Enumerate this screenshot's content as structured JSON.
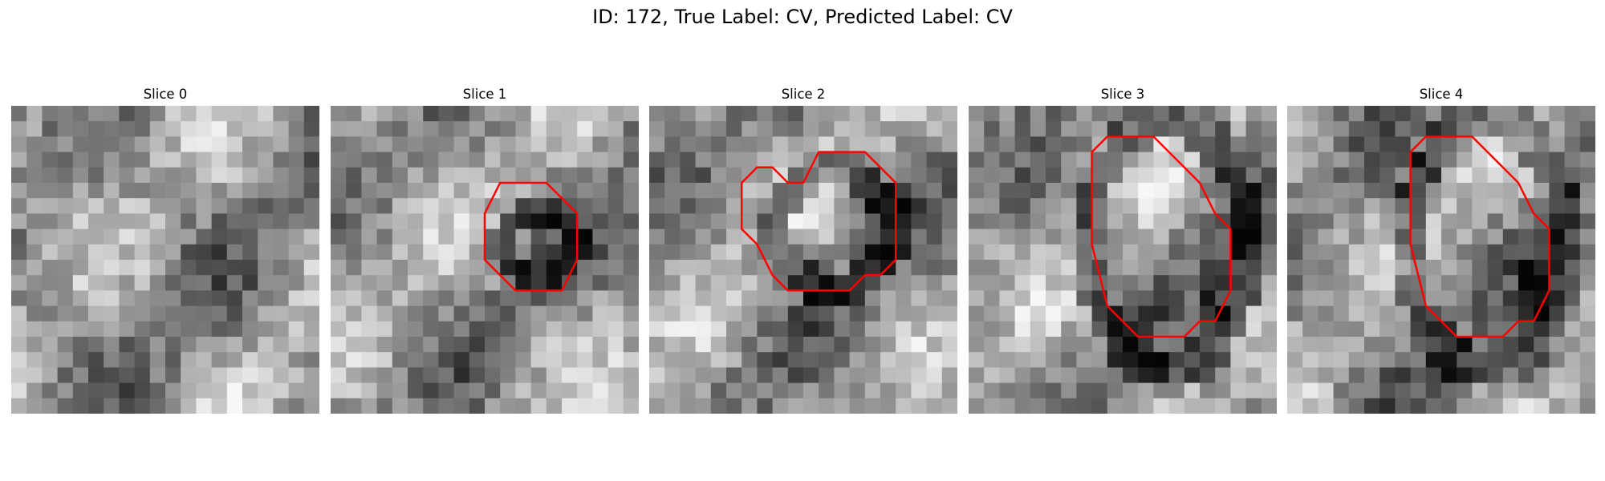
{
  "figure": {
    "title": "ID: 172, True Label: CV, Predicted Label: CV"
  },
  "panels": [
    {
      "title": "Slice 0",
      "contour": []
    },
    {
      "title": "Slice 1",
      "contour": [
        [
          11,
          5
        ],
        [
          14,
          5
        ],
        [
          16,
          7
        ],
        [
          16,
          10
        ],
        [
          15,
          12
        ],
        [
          12,
          12
        ],
        [
          11,
          11
        ],
        [
          10,
          10
        ],
        [
          10,
          7
        ]
      ]
    },
    {
      "title": "Slice 2",
      "contour": [
        [
          10,
          5
        ],
        [
          11,
          3
        ],
        [
          14,
          3
        ],
        [
          16,
          5
        ],
        [
          16,
          10
        ],
        [
          15,
          11
        ],
        [
          14,
          11
        ],
        [
          13,
          12
        ],
        [
          9,
          12
        ],
        [
          8,
          11
        ],
        [
          7,
          9
        ],
        [
          6,
          8
        ],
        [
          6,
          5
        ],
        [
          7,
          4
        ],
        [
          8,
          4
        ],
        [
          9,
          5
        ]
      ]
    },
    {
      "title": "Slice 3",
      "contour": [
        [
          11,
          2
        ],
        [
          12,
          2
        ],
        [
          13,
          3
        ],
        [
          14,
          4
        ],
        [
          15,
          5
        ],
        [
          16,
          7
        ],
        [
          17,
          8
        ],
        [
          17,
          12
        ],
        [
          16,
          14
        ],
        [
          15,
          14
        ],
        [
          14,
          15
        ],
        [
          11,
          15
        ],
        [
          10,
          14
        ],
        [
          9,
          13
        ],
        [
          8,
          9
        ],
        [
          8,
          3
        ],
        [
          9,
          2
        ]
      ]
    },
    {
      "title": "Slice 4",
      "contour": [
        [
          11,
          2
        ],
        [
          12,
          2
        ],
        [
          13,
          3
        ],
        [
          14,
          4
        ],
        [
          15,
          5
        ],
        [
          16,
          7
        ],
        [
          17,
          8
        ],
        [
          17,
          12
        ],
        [
          16,
          14
        ],
        [
          15,
          14
        ],
        [
          14,
          15
        ],
        [
          11,
          15
        ],
        [
          10,
          14
        ],
        [
          9,
          13
        ],
        [
          8,
          9
        ],
        [
          8,
          3
        ],
        [
          9,
          2
        ]
      ]
    }
  ]
}
